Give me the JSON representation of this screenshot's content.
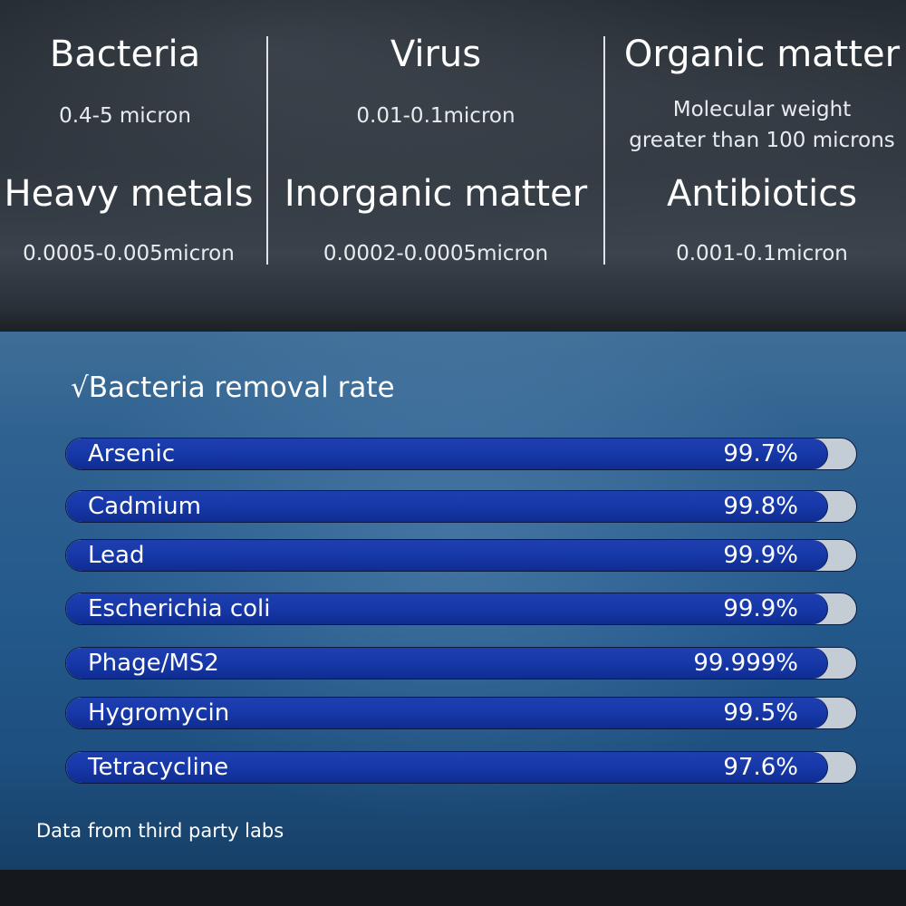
{
  "categories": [
    {
      "name": "Bacteria",
      "size": "0.4-5 micron"
    },
    {
      "name": "Virus",
      "size": "0.01-0.1micron"
    },
    {
      "name": "Organic matter",
      "size": "Molecular weight greater than 100 microns",
      "size_line1": "Molecular weight",
      "size_line2": "greater than 100 microns"
    },
    {
      "name": "Heavy metals",
      "size": "0.0005-0.005micron"
    },
    {
      "name": "Inorganic matter",
      "size": "0.0002-0.0005micron"
    },
    {
      "name": "Antibiotics",
      "size": "0.001-0.1micron"
    }
  ],
  "removal": {
    "title": "√Bacteria removal rate",
    "items": [
      {
        "label": "Arsenic",
        "value": "99.7%"
      },
      {
        "label": "Cadmium",
        "value": "99.8%"
      },
      {
        "label": "Lead",
        "value": "99.9%"
      },
      {
        "label": "Escherichia coli",
        "value": "99.9%"
      },
      {
        "label": "Phage/MS2",
        "value": "99.999%"
      },
      {
        "label": "Hygromycin",
        "value": "99.5%"
      },
      {
        "label": "Tetracycline",
        "value": "97.6%"
      }
    ],
    "bar_color": "#1638a8",
    "track_color": "#c4ccd6"
  },
  "footnote": "Data from third party labs"
}
